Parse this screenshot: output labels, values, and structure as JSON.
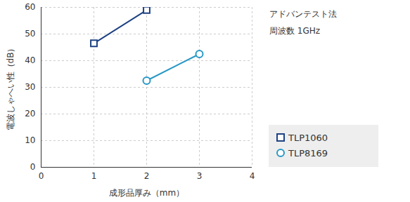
{
  "chart_data": {
    "type": "line",
    "annotations": [
      "アドバンテスト法",
      "周波数 1GHz"
    ],
    "xlabel": "成形品厚み（mm）",
    "ylabel": "電波しゃへい性（dB）",
    "x": [
      1,
      2,
      3
    ],
    "series": [
      {
        "name": "TLP1060",
        "color": "#1d4283",
        "marker": "square",
        "values": [
          46.5,
          59,
          null
        ]
      },
      {
        "name": "TLP8169",
        "color": "#2898c6",
        "marker": "circle",
        "values": [
          null,
          32.5,
          42.5
        ]
      }
    ],
    "xlim": [
      0,
      4
    ],
    "xticks": [
      0,
      1,
      2,
      3,
      4
    ],
    "ylim": [
      0,
      60
    ],
    "yticks": [
      0,
      10,
      20,
      30,
      40,
      50,
      60
    ],
    "grid": true,
    "legend": "lower right"
  }
}
